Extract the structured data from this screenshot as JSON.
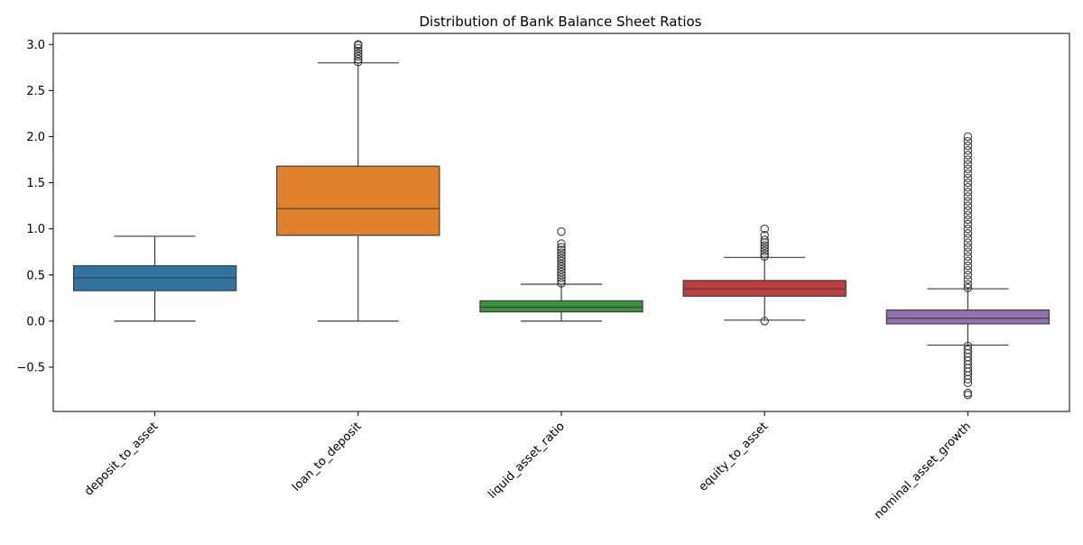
{
  "chart_data": {
    "type": "box",
    "title": "Distribution of Bank Balance Sheet Ratios",
    "xlabel": "",
    "ylabel": "",
    "ylim": [
      -0.98,
      3.12
    ],
    "yticks": [
      -0.5,
      0.0,
      0.5,
      1.0,
      1.5,
      2.0,
      2.5,
      3.0
    ],
    "ytick_labels": [
      "−0.5",
      "0.0",
      "0.5",
      "1.0",
      "1.5",
      "2.0",
      "2.5",
      "3.0"
    ],
    "grid": false,
    "categories": [
      "deposit_to_asset",
      "loan_to_deposit",
      "liquid_asset_ratio",
      "equity_to_asset",
      "nominal_asset_growth"
    ],
    "boxes": [
      {
        "category": "deposit_to_asset",
        "color": "#3274a1",
        "whisker_low": 0.0,
        "q1": 0.33,
        "median": 0.47,
        "q3": 0.6,
        "whisker_high": 0.92,
        "outliers_high": [],
        "outliers_low": []
      },
      {
        "category": "loan_to_deposit",
        "color": "#e1812c",
        "whisker_low": 0.0,
        "q1": 0.93,
        "median": 1.22,
        "q3": 1.68,
        "whisker_high": 2.8,
        "outliers_high": [
          2.81,
          2.84,
          2.87,
          2.9,
          2.93,
          2.96,
          2.99,
          3.0
        ],
        "outliers_low": []
      },
      {
        "category": "liquid_asset_ratio",
        "color": "#3a923a",
        "whisker_low": 0.0,
        "q1": 0.1,
        "median": 0.15,
        "q3": 0.22,
        "whisker_high": 0.4,
        "outliers_high": [
          0.41,
          0.44,
          0.47,
          0.5,
          0.53,
          0.56,
          0.59,
          0.62,
          0.65,
          0.68,
          0.71,
          0.74,
          0.77,
          0.8,
          0.84,
          0.97
        ],
        "outliers_low": []
      },
      {
        "category": "equity_to_asset",
        "color": "#c03d3e",
        "whisker_low": 0.01,
        "q1": 0.27,
        "median": 0.35,
        "q3": 0.44,
        "whisker_high": 0.69,
        "outliers_high": [
          0.7,
          0.73,
          0.76,
          0.79,
          0.82,
          0.85,
          0.88,
          0.93,
          1.0
        ],
        "outliers_low": [
          0.0
        ]
      },
      {
        "category": "nominal_asset_growth",
        "color": "#9372b2",
        "whisker_low": -0.26,
        "q1": -0.03,
        "median": 0.03,
        "q3": 0.12,
        "whisker_high": 0.35,
        "outliers_high": [
          0.36,
          0.4,
          0.45,
          0.5,
          0.55,
          0.6,
          0.65,
          0.7,
          0.75,
          0.8,
          0.85,
          0.9,
          0.95,
          1.0,
          1.05,
          1.1,
          1.15,
          1.2,
          1.25,
          1.3,
          1.35,
          1.4,
          1.45,
          1.5,
          1.55,
          1.6,
          1.65,
          1.7,
          1.75,
          1.8,
          1.85,
          1.9,
          1.95,
          2.0
        ],
        "outliers_low": [
          -0.27,
          -0.31,
          -0.35,
          -0.39,
          -0.43,
          -0.47,
          -0.51,
          -0.55,
          -0.59,
          -0.63,
          -0.67,
          -0.78,
          -0.8
        ]
      }
    ]
  }
}
